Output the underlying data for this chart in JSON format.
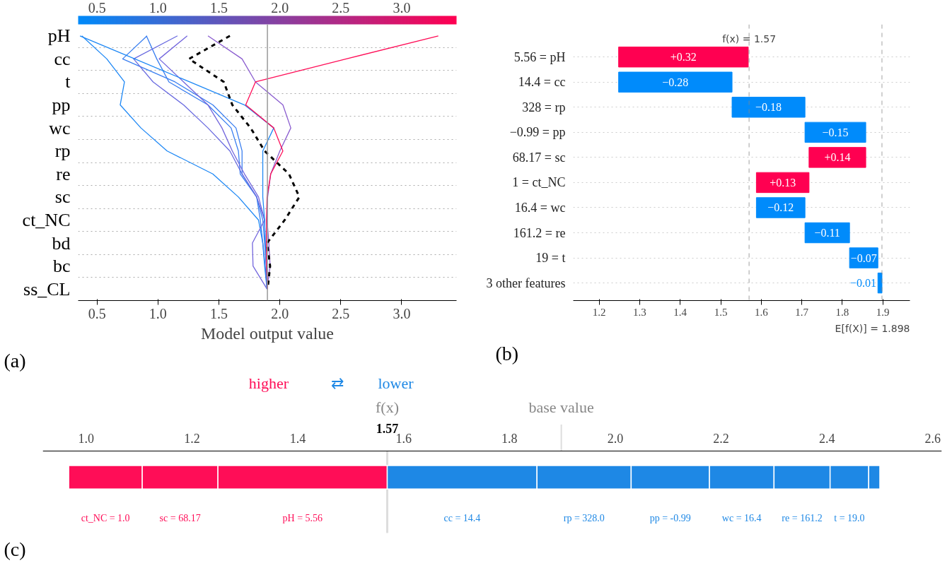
{
  "chart_data": [
    {
      "type": "line",
      "orientation": "horizontal",
      "categories": [
        "pH",
        "cc",
        "t",
        "pp",
        "wc",
        "rp",
        "re",
        "sc",
        "ct_NC",
        "bd",
        "bc",
        "ss_CL"
      ],
      "xlabel": "Model output value",
      "xlim": [
        0.345,
        3.45
      ],
      "xticks": [
        0.5,
        {
          "value": 1,
          "label": "1.0"
        },
        1.5,
        {
          "value": 2,
          "label": "2.0"
        },
        2.5,
        {
          "value": 3,
          "label": "3.0"
        }
      ],
      "clim": [
        0.345,
        3.45
      ],
      "cticks": [
        0.5,
        {
          "value": 1,
          "label": "1.0"
        },
        1.5,
        {
          "value": 2,
          "label": "2.0"
        },
        2.5,
        {
          "value": 3,
          "label": "3.0"
        }
      ],
      "grid": "y",
      "ref_lines": [
        {
          "axis": "x",
          "value": 1.898,
          "color": "#999999"
        }
      ],
      "annotations": [
        "(a)"
      ],
      "series": [
        {
          "color": "#1e88f5",
          "values": [
            0.375,
            0.58,
            0.725,
            0.69,
            0.86,
            1.075,
            1.45,
            1.66,
            1.825,
            1.86,
            1.875,
            1.895
          ]
        },
        {
          "color": "#3a7ff0",
          "values": [
            0.91,
            0.71,
            1.14,
            1.45,
            1.64,
            1.69,
            1.69,
            1.81,
            1.86,
            1.875,
            1.89,
            1.895
          ]
        },
        {
          "color": "#3a7ff0",
          "values": [
            0.905,
            0.99,
            1.09,
            1.41,
            1.6,
            1.66,
            1.675,
            1.81,
            1.84,
            1.86,
            1.88,
            1.895
          ]
        },
        {
          "color": "#6a6be0",
          "values": [
            1.16,
            0.8,
            0.96,
            1.21,
            1.41,
            1.59,
            1.69,
            1.81,
            1.875,
            1.88,
            1.89,
            1.895
          ]
        },
        {
          "color": "#7366dd",
          "values": [
            1.24,
            1.01,
            1.21,
            1.41,
            1.525,
            1.61,
            1.71,
            1.825,
            1.875,
            1.775,
            1.78,
            1.895
          ]
        },
        {
          "color": "#8a5ccf",
          "values": [
            1.41,
            1.69,
            1.8,
            2.025,
            2.09,
            2.0,
            1.925,
            1.9,
            1.895,
            1.91,
            1.92,
            1.895
          ]
        },
        {
          "color": "#1e88f5",
          "values": [
            0.36,
            0.81,
            1.26,
            1.71,
            1.95,
            1.86,
            1.86,
            1.86,
            1.875,
            1.88,
            1.89,
            1.895
          ]
        },
        {
          "color": "#ff0d57",
          "values": [
            3.3,
            2.545,
            1.8,
            1.72,
            1.95,
            2.025,
            1.925,
            1.895,
            1.89,
            1.89,
            1.89,
            1.9
          ]
        },
        {
          "color": "#000000",
          "line_style": "dashed",
          "values": [
            1.59,
            1.255,
            1.54,
            1.61,
            1.76,
            1.875,
            2.075,
            2.16,
            2.04,
            1.895,
            1.92,
            1.9
          ]
        }
      ]
    },
    {
      "type": "bar",
      "orientation": "horizontal",
      "categories": [
        "5.56 = pH",
        "14.4 = cc",
        "328 = rp",
        "−0.99 = pp",
        "68.17 = sc",
        "1 = ct_NC",
        "16.4 = wc",
        "161.2 = re",
        "19 = t",
        "3 other features"
      ],
      "values": [
        0.32,
        -0.28,
        -0.18,
        -0.15,
        0.14,
        0.13,
        -0.12,
        -0.11,
        -0.07,
        -0.01
      ],
      "base": [
        1.248,
        1.528,
        1.708,
        1.858,
        1.718,
        1.588,
        1.708,
        1.818,
        1.888,
        1.898
      ],
      "colors": [
        "#ff0051",
        "#008bfb",
        "#008bfb",
        "#008bfb",
        "#ff0051",
        "#ff0051",
        "#008bfb",
        "#008bfb",
        "#008bfb",
        "#008bfb"
      ],
      "value_labels": [
        "+0.32",
        "−0.28",
        "−0.18",
        "−0.15",
        "+0.14",
        "+0.13",
        "−0.12",
        "−0.11",
        "−0.07",
        "−0.01"
      ],
      "xlim": [
        1.136,
        1.967
      ],
      "xticks": [
        1.2,
        1.3,
        1.4,
        1.5,
        1.6,
        1.7,
        1.8,
        1.9
      ],
      "grid": "y",
      "ref_lines": [
        {
          "axis": "x",
          "value": 1.57,
          "label": "f(x) = 1.57",
          "line_style": "dashed"
        },
        {
          "axis": "x",
          "value": 1.898,
          "label": "E[f(X)] = 1.898",
          "line_style": "dashed"
        }
      ],
      "annotations": [
        "(b)"
      ]
    },
    {
      "type": "bar",
      "orientation": "horizontal",
      "categories": [
        null
      ],
      "tick_labels": "x",
      "xlim": [
        0.918,
        2.617
      ],
      "xticks": [
        {
          "value": 1,
          "label": "1.0"
        },
        1.2,
        1.4,
        1.6,
        1.8,
        {
          "value": 2,
          "label": "2.0"
        },
        2.2,
        2.4,
        2.6
      ],
      "series": [
        {
          "name": "ct_NC = 1.0",
          "color": "#ff0d57",
          "base": [
            0.967
          ],
          "values": [
            0.139
          ]
        },
        {
          "name": "sc = 68.17",
          "color": "#ff0d57",
          "base": [
            1.106
          ],
          "values": [
            0.143
          ]
        },
        {
          "name": "pH = 5.56",
          "color": "#ff0d57",
          "base": [
            1.249
          ],
          "values": [
            0.32
          ]
        },
        {
          "name": "cc = 14.4",
          "color": "#1e88e5",
          "base": [
            1.852
          ],
          "values": [
            -0.283
          ]
        },
        {
          "name": "rp = 328.0",
          "color": "#1e88e5",
          "base": [
            2.03
          ],
          "values": [
            -0.178
          ]
        },
        {
          "name": "pp = -0.99",
          "color": "#1e88e5",
          "base": [
            2.178
          ],
          "values": [
            -0.148
          ]
        },
        {
          "name": "wc = 16.4",
          "color": "#1e88e5",
          "base": [
            2.3
          ],
          "values": [
            -0.122
          ]
        },
        {
          "name": "re = 161.2",
          "color": "#1e88e5",
          "base": [
            2.406
          ],
          "values": [
            -0.106
          ]
        },
        {
          "name": "t = 19.0",
          "color": "#1e88e5",
          "base": [
            2.479
          ],
          "values": [
            -0.073
          ]
        },
        {
          "color": "#1e88e5",
          "base": [
            2.5
          ],
          "values": [
            -0.021
          ]
        }
      ],
      "ref_lines": [
        {
          "axis": "x",
          "value": 1.569,
          "label": "f(x)\n1.57"
        },
        {
          "axis": "x",
          "value": 1.898,
          "label": "base value"
        }
      ],
      "annotations": [
        "higher",
        "⇄",
        "lower",
        "(c)"
      ]
    }
  ]
}
